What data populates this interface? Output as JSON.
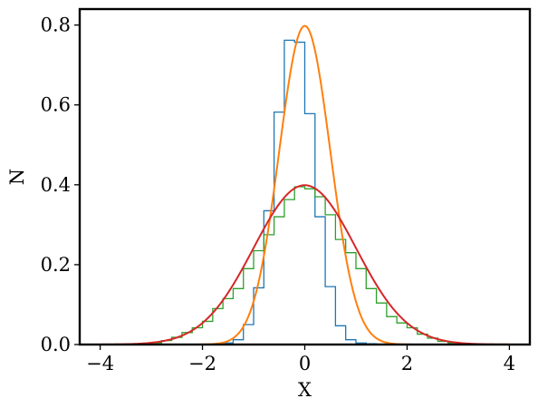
{
  "chart_data": {
    "type": "line",
    "title": "",
    "xlabel": "X",
    "ylabel": "N",
    "xlim": [
      -4.4,
      4.4
    ],
    "ylim": [
      0,
      0.84
    ],
    "xticks": [
      -4,
      -2,
      0,
      2,
      4
    ],
    "xtick_labels": [
      "−4",
      "−2",
      "0",
      "2",
      "4"
    ],
    "yticks": [
      0.0,
      0.2,
      0.4,
      0.6,
      0.8
    ],
    "ytick_labels": [
      "0.0",
      "0.2",
      "0.4",
      "0.6",
      "0.8"
    ],
    "grid": false,
    "legend": "none",
    "histograms": [
      {
        "color": "#1f77b4",
        "bin_edges": [
          -1.6,
          -1.4,
          -1.2,
          -1.0,
          -0.8,
          -0.6,
          -0.4,
          -0.2,
          0.0,
          0.2,
          0.4,
          0.6,
          0.8,
          1.0,
          1.2,
          1.4,
          1.6
        ],
        "values": [
          0.004,
          0.012,
          0.05,
          0.142,
          0.335,
          0.582,
          0.762,
          0.757,
          0.578,
          0.32,
          0.145,
          0.047,
          0.012,
          0.004,
          0.002,
          0.001
        ]
      },
      {
        "color": "#2ca02c",
        "bin_edges": [
          -3.0,
          -2.8,
          -2.6,
          -2.4,
          -2.2,
          -2.0,
          -1.8,
          -1.6,
          -1.4,
          -1.2,
          -1.0,
          -0.8,
          -0.6,
          -0.4,
          -0.2,
          0.0,
          0.2,
          0.4,
          0.6,
          0.8,
          1.0,
          1.2,
          1.4,
          1.6,
          1.8,
          2.0,
          2.2,
          2.4,
          2.6,
          2.8,
          3.0
        ],
        "values": [
          0.004,
          0.01,
          0.018,
          0.03,
          0.042,
          0.058,
          0.09,
          0.115,
          0.14,
          0.19,
          0.235,
          0.275,
          0.32,
          0.363,
          0.395,
          0.39,
          0.37,
          0.325,
          0.263,
          0.23,
          0.19,
          0.14,
          0.104,
          0.07,
          0.054,
          0.042,
          0.026,
          0.016,
          0.008,
          0.004
        ]
      }
    ],
    "series": [
      {
        "color": "#ff7f0e",
        "function": "normal_pdf",
        "mean": 0,
        "sigma": 0.5,
        "x_range": [
          -4,
          4
        ]
      },
      {
        "color": "#d62728",
        "function": "normal_pdf",
        "mean": 0,
        "sigma": 1.0,
        "x_range": [
          -4,
          4
        ]
      }
    ]
  }
}
